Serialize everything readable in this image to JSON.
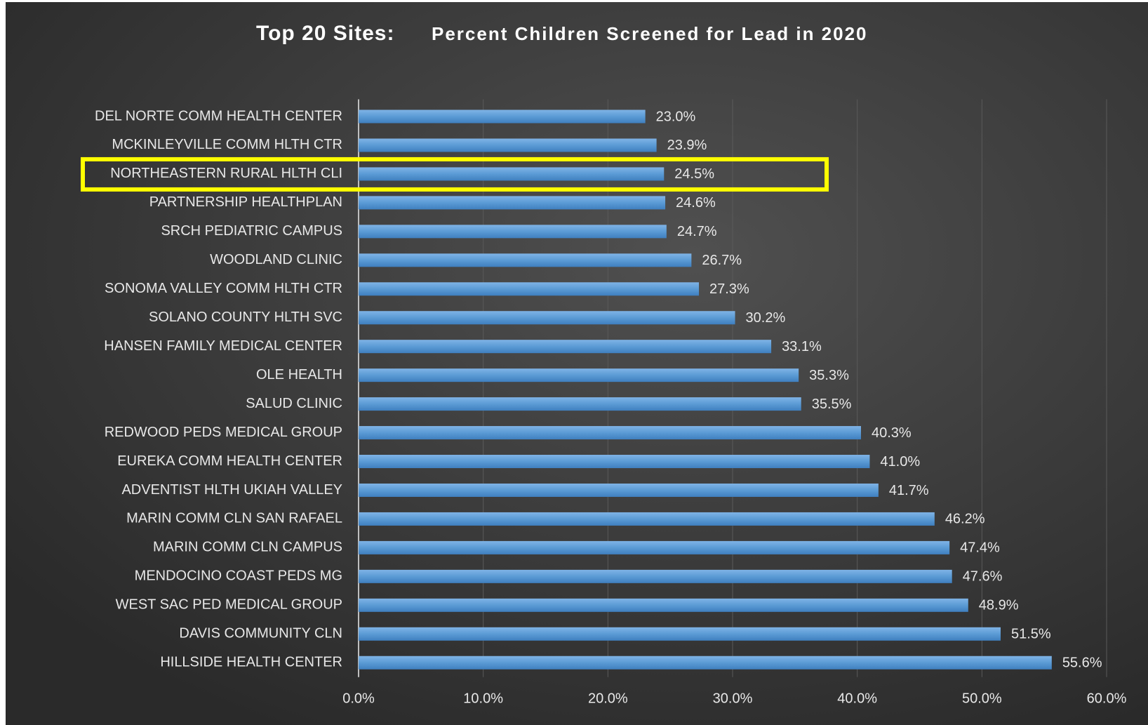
{
  "chart_data": {
    "type": "barh",
    "title": "Top 20 Sites:",
    "subtitle": "Percent Children Screened for Lead in 2020",
    "categories": [
      "DEL NORTE COMM HEALTH CENTER",
      "MCKINLEYVILLE COMM HLTH CTR",
      "NORTHEASTERN RURAL HLTH CLI",
      "PARTNERSHIP HEALTHPLAN",
      "SRCH PEDIATRIC CAMPUS",
      "WOODLAND CLINIC",
      "SONOMA VALLEY COMM HLTH CTR",
      "SOLANO COUNTY HLTH SVC",
      "HANSEN FAMILY MEDICAL CENTER",
      "OLE HEALTH",
      "SALUD CLINIC",
      "REDWOOD PEDS MEDICAL GROUP",
      "EUREKA COMM HEALTH CENTER",
      "ADVENTIST HLTH UKIAH VALLEY",
      "MARIN COMM CLN SAN RAFAEL",
      "MARIN COMM CLN CAMPUS",
      "MENDOCINO COAST PEDS MG",
      "WEST SAC PED MEDICAL GROUP",
      "DAVIS COMMUNITY CLN",
      "HILLSIDE HEALTH CENTER"
    ],
    "values": [
      23.0,
      23.9,
      24.5,
      24.6,
      24.7,
      26.7,
      27.3,
      30.2,
      33.1,
      35.3,
      35.5,
      40.3,
      41.0,
      41.7,
      46.2,
      47.4,
      47.6,
      48.9,
      51.5,
      55.6
    ],
    "value_labels": [
      "23.0%",
      "23.9%",
      "24.5%",
      "24.6%",
      "24.7%",
      "26.7%",
      "27.3%",
      "30.2%",
      "33.1%",
      "35.3%",
      "35.5%",
      "40.3%",
      "41.0%",
      "41.7%",
      "46.2%",
      "47.4%",
      "47.6%",
      "48.9%",
      "51.5%",
      "55.6%"
    ],
    "color": "#5b9bd5",
    "highlight": 2,
    "highlight_color": "#ffff00",
    "xlim": [
      0,
      60
    ],
    "xticks": [
      {
        "value": 0,
        "label": "0.0%"
      },
      {
        "value": 10,
        "label": "10.0%"
      },
      {
        "value": 20,
        "label": "20.0%"
      },
      {
        "value": 30,
        "label": "30.0%"
      },
      {
        "value": 40,
        "label": "40.0%"
      },
      {
        "value": 50,
        "label": "50.0%"
      },
      {
        "value": 60,
        "label": "60.0%"
      }
    ],
    "grid": true
  }
}
